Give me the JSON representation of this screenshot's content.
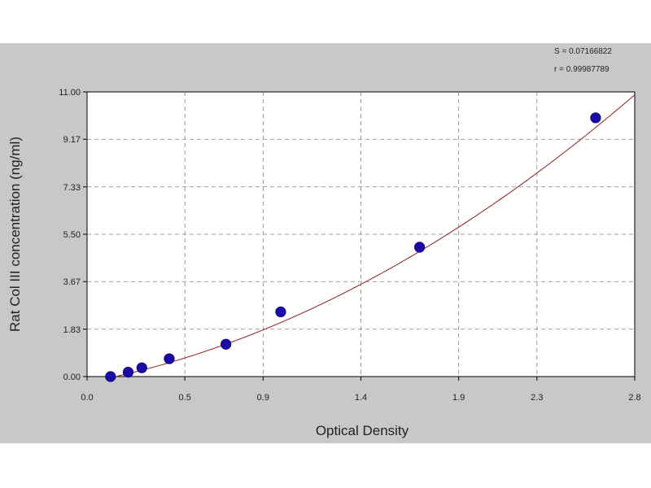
{
  "chart_data": {
    "type": "scatter",
    "title": "",
    "xlabel": "Optical Density",
    "ylabel": "Rat Col III concentration (ng/ml)",
    "xlim": [
      0.0,
      2.8
    ],
    "ylim": [
      0.0,
      11.0
    ],
    "x_ticks": [
      0.0,
      0.5,
      0.9,
      1.4,
      1.9,
      2.3,
      2.8
    ],
    "x_tick_labels": [
      "0.0",
      "0.5",
      "0.9",
      "1.4",
      "1.9",
      "2.3",
      "2.8"
    ],
    "y_ticks": [
      0.0,
      1.83,
      3.67,
      5.5,
      7.33,
      9.17,
      11.0
    ],
    "y_tick_labels": [
      "0.00",
      "1.83",
      "3.67",
      "5.50",
      "7.33",
      "9.17",
      "11.00"
    ],
    "grid": true,
    "stats": {
      "s_label": "S = 0.07166822",
      "r_label": "r = 0.99987789"
    },
    "colors": {
      "outer_background": "#c8c8c8",
      "plot_background": "#ffffff",
      "points": "#1a0aa8",
      "fit_curve": "#9b3030",
      "grid": "#808080"
    },
    "series": [
      {
        "points": [
          {
            "x": 0.12,
            "y": 0.0
          },
          {
            "x": 0.21,
            "y": 0.17
          },
          {
            "x": 0.28,
            "y": 0.34
          },
          {
            "x": 0.42,
            "y": 0.69
          },
          {
            "x": 0.71,
            "y": 1.25
          },
          {
            "x": 0.99,
            "y": 2.5
          },
          {
            "x": 1.7,
            "y": 5.0
          },
          {
            "x": 2.6,
            "y": 10.0
          }
        ]
      }
    ],
    "fit_curve": {
      "type": "quadratic",
      "a": 0.9,
      "b": 1.45,
      "c": -0.23
    }
  }
}
